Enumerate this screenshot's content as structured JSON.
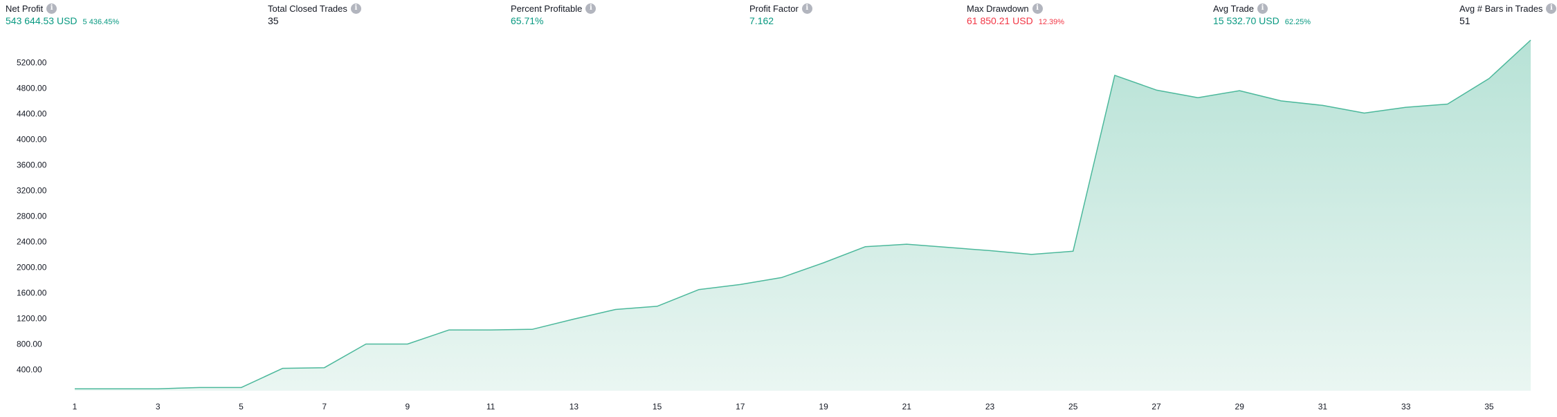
{
  "metrics": [
    {
      "label": "Net Profit",
      "value": "543 644.53 USD",
      "sub": "5 436.45%",
      "status": "positive"
    },
    {
      "label": "Total Closed Trades",
      "value": "35",
      "sub": "",
      "status": "neutral"
    },
    {
      "label": "Percent Profitable",
      "value": "65.71%",
      "sub": "",
      "status": "positive"
    },
    {
      "label": "Profit Factor",
      "value": "7.162",
      "sub": "",
      "status": "positive"
    },
    {
      "label": "Max Drawdown",
      "value": "61 850.21 USD",
      "sub": "12.39%",
      "status": "negative"
    },
    {
      "label": "Avg Trade",
      "value": "15 532.70 USD",
      "sub": "62.25%",
      "status": "positive"
    },
    {
      "label": "Avg # Bars in Trades",
      "value": "51",
      "sub": "",
      "status": "neutral"
    }
  ],
  "info_icon_glyph": "i",
  "colors": {
    "positive": "#089981",
    "negative": "#f23645",
    "neutral": "#131722",
    "line": "#4bb89b",
    "area_top": "#b7e2d6",
    "area_bottom": "#eaf6f2",
    "info_icon_bg": "#b2b5be"
  },
  "chart_data": {
    "type": "area",
    "x": [
      1,
      2,
      3,
      4,
      5,
      6,
      7,
      8,
      9,
      10,
      11,
      12,
      13,
      14,
      15,
      16,
      17,
      18,
      19,
      20,
      21,
      22,
      23,
      24,
      25,
      26,
      27,
      28,
      29,
      30,
      31,
      32,
      33,
      34,
      35,
      36
    ],
    "series": [
      {
        "values": [
          100,
          100,
          100,
          120,
          120,
          420,
          430,
          800,
          800,
          1020,
          1020,
          1030,
          1190,
          1340,
          1390,
          1650,
          1730,
          1840,
          2070,
          2320,
          2360,
          2310,
          2260,
          2200,
          2250,
          5000,
          4770,
          4650,
          4760,
          4600,
          4530,
          4410,
          4500,
          4550,
          4950,
          5550
        ]
      }
    ],
    "x_ticks": [
      "1",
      "3",
      "5",
      "7",
      "9",
      "11",
      "13",
      "15",
      "17",
      "19",
      "21",
      "23",
      "25",
      "27",
      "29",
      "31",
      "33",
      "35"
    ],
    "y_ticks": [
      "400.00",
      "800.00",
      "1200.00",
      "1600.00",
      "2000.00",
      "2400.00",
      "2800.00",
      "3200.00",
      "3600.00",
      "4000.00",
      "4400.00",
      "4800.00",
      "5200.00"
    ],
    "y_tick_values": [
      400,
      800,
      1200,
      1600,
      2000,
      2400,
      2800,
      3200,
      3600,
      4000,
      4400,
      4800,
      5200
    ],
    "x_tick_values": [
      1,
      3,
      5,
      7,
      9,
      11,
      13,
      15,
      17,
      19,
      21,
      23,
      25,
      27,
      29,
      31,
      33,
      35
    ],
    "xlim": [
      1,
      36
    ],
    "ylim": [
      70,
      5550
    ],
    "grid": false,
    "legend": "none",
    "title": "",
    "xlabel": "",
    "ylabel": ""
  }
}
